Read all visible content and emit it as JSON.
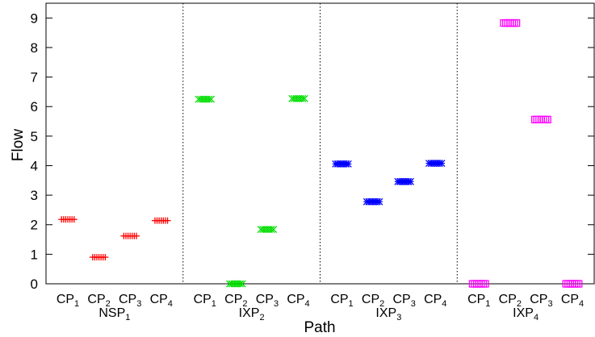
{
  "chart_data": {
    "type": "scatter",
    "title": "",
    "xlabel": "Path",
    "ylabel": "Flow",
    "ylim": [
      0,
      9.5
    ],
    "yticks": [
      "0",
      "1",
      "2",
      "3",
      "4",
      "5",
      "6",
      "7",
      "8",
      "9"
    ],
    "grid": false,
    "legend": "none",
    "groups": [
      {
        "name": "NSP",
        "sub": "1",
        "color": "#ff0000",
        "marker": "plus",
        "paths": [
          {
            "label": "CP",
            "sub": "1",
            "y": 2.18
          },
          {
            "label": "CP",
            "sub": "2",
            "y": 0.9
          },
          {
            "label": "CP",
            "sub": "3",
            "y": 1.62
          },
          {
            "label": "CP",
            "sub": "4",
            "y": 2.14
          }
        ]
      },
      {
        "name": "IXP",
        "sub": "2",
        "color": "#00dd00",
        "marker": "x",
        "paths": [
          {
            "label": "CP",
            "sub": "1",
            "y": 6.25
          },
          {
            "label": "CP",
            "sub": "2",
            "y": 0.0
          },
          {
            "label": "CP",
            "sub": "3",
            "y": 1.84
          },
          {
            "label": "CP",
            "sub": "4",
            "y": 6.27
          }
        ]
      },
      {
        "name": "IXP",
        "sub": "3",
        "color": "#0000ff",
        "marker": "star",
        "paths": [
          {
            "label": "CP",
            "sub": "1",
            "y": 4.06
          },
          {
            "label": "CP",
            "sub": "2",
            "y": 2.78
          },
          {
            "label": "CP",
            "sub": "3",
            "y": 3.46
          },
          {
            "label": "CP",
            "sub": "4",
            "y": 4.08
          }
        ]
      },
      {
        "name": "IXP",
        "sub": "4",
        "color": "#ff00ff",
        "marker": "square",
        "paths": [
          {
            "label": "CP",
            "sub": "1",
            "y": 0.0
          },
          {
            "label": "CP",
            "sub": "2",
            "y": 8.83
          },
          {
            "label": "CP",
            "sub": "3",
            "y": 5.56
          },
          {
            "label": "CP",
            "sub": "4",
            "y": 0.0
          }
        ]
      }
    ]
  }
}
